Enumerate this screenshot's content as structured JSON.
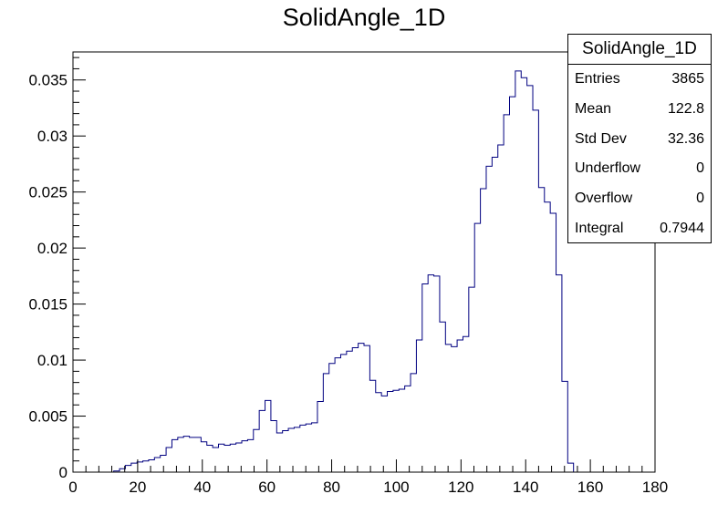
{
  "chart_data": {
    "type": "histogram",
    "title": "SolidAngle_1D",
    "xlim": [
      0,
      180
    ],
    "ylim": [
      0,
      0.0375
    ],
    "bin_width": 1.8,
    "bin_start": 0,
    "x_ticks": [
      0,
      20,
      40,
      60,
      80,
      100,
      120,
      140,
      160,
      180
    ],
    "y_ticks": [
      0,
      0.005,
      0.01,
      0.015,
      0.02,
      0.025,
      0.03,
      0.035
    ],
    "y_tick_labels": [
      "0",
      "0.005",
      "0.01",
      "0.015",
      "0.02",
      "0.025",
      "0.03",
      "0.035"
    ],
    "line_color": "#000080",
    "values": [
      0,
      0,
      0,
      0,
      0,
      0,
      0,
      0.0001,
      0.0003,
      0.0006,
      0.0008,
      0.0009,
      0.001,
      0.0011,
      0.0013,
      0.0015,
      0.0022,
      0.0029,
      0.0031,
      0.0032,
      0.0031,
      0.0031,
      0.0027,
      0.0024,
      0.0022,
      0.0025,
      0.0024,
      0.0025,
      0.0026,
      0.0028,
      0.0029,
      0.0038,
      0.0055,
      0.0064,
      0.0046,
      0.0035,
      0.0037,
      0.0039,
      0.004,
      0.0042,
      0.0043,
      0.0044,
      0.0063,
      0.0088,
      0.0097,
      0.0102,
      0.0105,
      0.0108,
      0.0111,
      0.0115,
      0.0113,
      0.0082,
      0.0071,
      0.0068,
      0.0072,
      0.0073,
      0.0074,
      0.0077,
      0.0088,
      0.0118,
      0.0168,
      0.0176,
      0.0175,
      0.0134,
      0.0114,
      0.0112,
      0.0118,
      0.0121,
      0.0165,
      0.0222,
      0.0253,
      0.0273,
      0.0281,
      0.0292,
      0.0319,
      0.0335,
      0.0358,
      0.0352,
      0.0345,
      0.0323,
      0.0254,
      0.0241,
      0.0231,
      0.0176,
      0.0081,
      0.0008,
      0,
      0,
      0,
      0,
      0,
      0,
      0,
      0,
      0,
      0,
      0,
      0,
      0,
      0
    ]
  },
  "stats_box": {
    "title": "SolidAngle_1D",
    "rows": [
      {
        "label": "Entries",
        "value": "3865"
      },
      {
        "label": "Mean",
        "value": "122.8"
      },
      {
        "label": "Std Dev",
        "value": "32.36"
      },
      {
        "label": "Underflow",
        "value": "0"
      },
      {
        "label": "Overflow",
        "value": "0"
      },
      {
        "label": "Integral",
        "value": "0.7944"
      }
    ]
  }
}
